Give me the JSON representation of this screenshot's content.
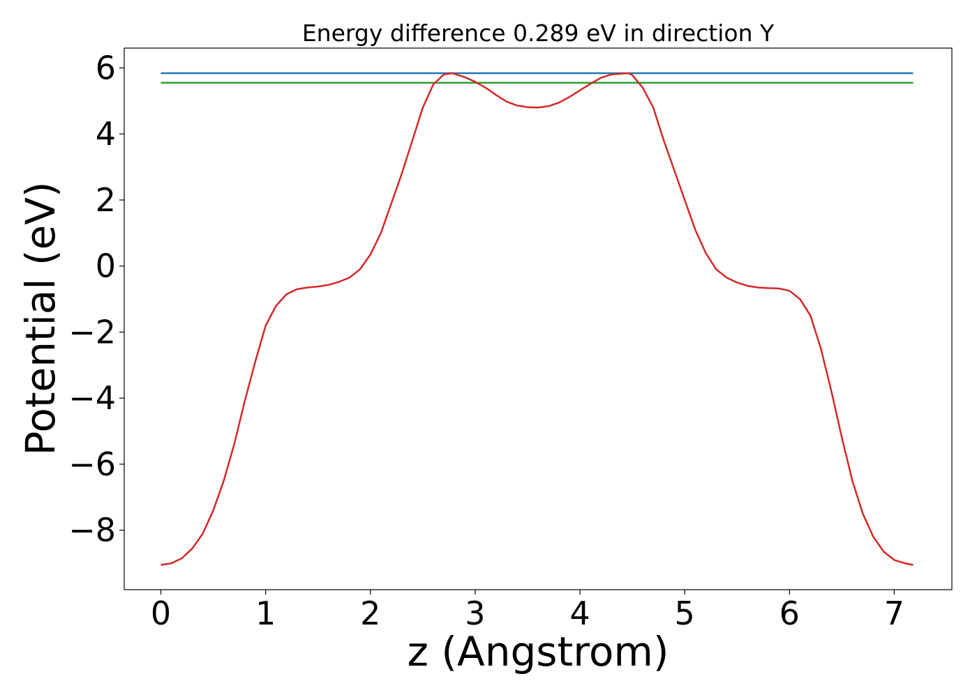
{
  "chart_data": {
    "type": "line",
    "title": "Energy difference 0.289 eV in direction Y",
    "xlabel": "z (Angstrom)",
    "ylabel": "Potential (eV)",
    "xlim": [
      -0.35,
      7.55
    ],
    "ylim": [
      -9.8,
      6.6
    ],
    "xticks": [
      0,
      1,
      2,
      3,
      4,
      5,
      6,
      7
    ],
    "yticks": [
      -8,
      -6,
      -4,
      -2,
      0,
      2,
      4,
      6
    ],
    "xtick_labels": [
      "0",
      "1",
      "2",
      "3",
      "4",
      "5",
      "6",
      "7"
    ],
    "ytick_labels": [
      "−8",
      "−6",
      "−4",
      "−2",
      "0",
      "2",
      "4",
      "6"
    ],
    "grid": false,
    "series": [
      {
        "color": "#1f77b4",
        "x": [
          0,
          7.18
        ],
        "y": [
          5.84,
          5.84
        ]
      },
      {
        "color": "#2ca02c",
        "x": [
          0,
          7.18
        ],
        "y": [
          5.55,
          5.55
        ]
      },
      {
        "color": "#d62728",
        "x": [
          0,
          0.1,
          0.2,
          0.3,
          0.4,
          0.5,
          0.6,
          0.7,
          0.8,
          0.9,
          1.0,
          1.1,
          1.2,
          1.3,
          1.4,
          1.5,
          1.6,
          1.7,
          1.8,
          1.9,
          2.0,
          2.1,
          2.2,
          2.3,
          2.4,
          2.5,
          2.6,
          2.7,
          2.78,
          2.9,
          3.0,
          3.1,
          3.2,
          3.3,
          3.4,
          3.5,
          3.6,
          3.7,
          3.8,
          3.9,
          4.0,
          4.1,
          4.2,
          4.3,
          4.46,
          4.5,
          4.6,
          4.7,
          4.8,
          4.9,
          5.0,
          5.1,
          5.2,
          5.3,
          5.4,
          5.5,
          5.6,
          5.7,
          5.8,
          5.9,
          6.0,
          6.1,
          6.2,
          6.3,
          6.4,
          6.5,
          6.6,
          6.7,
          6.8,
          6.9,
          7.0,
          7.1,
          7.18
        ],
        "y": [
          -9.05,
          -9.0,
          -8.85,
          -8.55,
          -8.1,
          -7.4,
          -6.5,
          -5.4,
          -4.1,
          -2.9,
          -1.8,
          -1.2,
          -0.85,
          -0.7,
          -0.65,
          -0.62,
          -0.57,
          -0.48,
          -0.35,
          -0.1,
          0.35,
          1.0,
          1.9,
          2.8,
          3.8,
          4.8,
          5.5,
          5.8,
          5.84,
          5.72,
          5.58,
          5.4,
          5.18,
          4.98,
          4.86,
          4.81,
          4.8,
          4.84,
          4.95,
          5.12,
          5.32,
          5.52,
          5.7,
          5.8,
          5.84,
          5.78,
          5.4,
          4.8,
          3.8,
          2.9,
          2.0,
          1.1,
          0.4,
          -0.1,
          -0.35,
          -0.5,
          -0.6,
          -0.65,
          -0.67,
          -0.68,
          -0.75,
          -1.0,
          -1.5,
          -2.5,
          -3.8,
          -5.2,
          -6.5,
          -7.5,
          -8.2,
          -8.65,
          -8.9,
          -9.0,
          -9.05
        ]
      }
    ]
  }
}
